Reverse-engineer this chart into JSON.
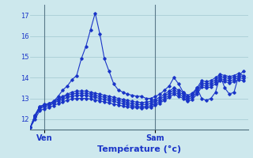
{
  "xlabel": "Température (°c)",
  "background_color": "#cde8ed",
  "grid_color": "#a8cdd4",
  "line_color": "#1a35c8",
  "tick_color": "#1a35c8",
  "ylim": [
    11.5,
    17.5
  ],
  "xlim": [
    0,
    47
  ],
  "yticks": [
    12,
    13,
    14,
    15,
    16,
    17
  ],
  "xtick_positions": [
    3,
    27
  ],
  "xtick_labels": [
    "Ven",
    "Sam"
  ],
  "series": [
    [
      11.6,
      12.2,
      12.6,
      12.7,
      12.75,
      12.85,
      13.1,
      13.4,
      13.6,
      13.9,
      14.1,
      14.9,
      15.5,
      16.3,
      17.1,
      16.1,
      14.9,
      14.3,
      13.7,
      13.4,
      13.3,
      13.2,
      13.15,
      13.1,
      13.1,
      13.0,
      13.0,
      13.1,
      13.2,
      13.4,
      13.6,
      14.0,
      13.7,
      13.3,
      13.0,
      13.2,
      13.5,
      13.0,
      12.9,
      13.0,
      13.3,
      14.1,
      13.5,
      13.2,
      13.3,
      14.1,
      14.3
    ],
    [
      11.6,
      12.2,
      12.6,
      12.7,
      12.75,
      12.85,
      13.0,
      13.1,
      13.2,
      13.3,
      13.35,
      13.35,
      13.35,
      13.3,
      13.25,
      13.2,
      13.15,
      13.1,
      13.05,
      13.0,
      12.95,
      12.9,
      12.85,
      12.82,
      12.8,
      12.82,
      12.85,
      12.95,
      13.05,
      13.2,
      13.35,
      13.5,
      13.4,
      13.3,
      13.15,
      13.25,
      13.5,
      13.85,
      13.8,
      13.85,
      14.0,
      14.15,
      14.1,
      14.05,
      14.1,
      14.2,
      14.1
    ],
    [
      11.6,
      12.15,
      12.55,
      12.65,
      12.7,
      12.8,
      12.95,
      13.05,
      13.15,
      13.2,
      13.25,
      13.25,
      13.25,
      13.2,
      13.15,
      13.1,
      13.05,
      13.0,
      12.95,
      12.9,
      12.85,
      12.8,
      12.75,
      12.72,
      12.7,
      12.72,
      12.75,
      12.85,
      12.95,
      13.1,
      13.25,
      13.4,
      13.3,
      13.2,
      13.05,
      13.15,
      13.4,
      13.75,
      13.7,
      13.75,
      13.9,
      14.05,
      14.0,
      13.95,
      14.0,
      14.1,
      14.05
    ],
    [
      11.6,
      12.1,
      12.5,
      12.6,
      12.65,
      12.75,
      12.88,
      12.95,
      13.05,
      13.1,
      13.15,
      13.15,
      13.15,
      13.1,
      13.05,
      13.0,
      12.95,
      12.9,
      12.85,
      12.8,
      12.75,
      12.7,
      12.65,
      12.62,
      12.6,
      12.62,
      12.65,
      12.75,
      12.85,
      13.0,
      13.15,
      13.3,
      13.2,
      13.1,
      12.95,
      13.05,
      13.3,
      13.65,
      13.6,
      13.65,
      13.8,
      13.95,
      13.9,
      13.85,
      13.9,
      14.0,
      13.95
    ],
    [
      11.6,
      12.0,
      12.4,
      12.5,
      12.55,
      12.65,
      12.75,
      12.82,
      12.92,
      12.97,
      13.0,
      13.0,
      13.0,
      12.97,
      12.92,
      12.88,
      12.83,
      12.78,
      12.73,
      12.68,
      12.63,
      12.6,
      12.57,
      12.55,
      12.53,
      12.55,
      12.57,
      12.67,
      12.77,
      12.92,
      13.05,
      13.2,
      13.1,
      13.0,
      12.85,
      12.95,
      13.2,
      13.55,
      13.5,
      13.55,
      13.7,
      13.85,
      13.8,
      13.75,
      13.8,
      13.9,
      13.85
    ]
  ]
}
